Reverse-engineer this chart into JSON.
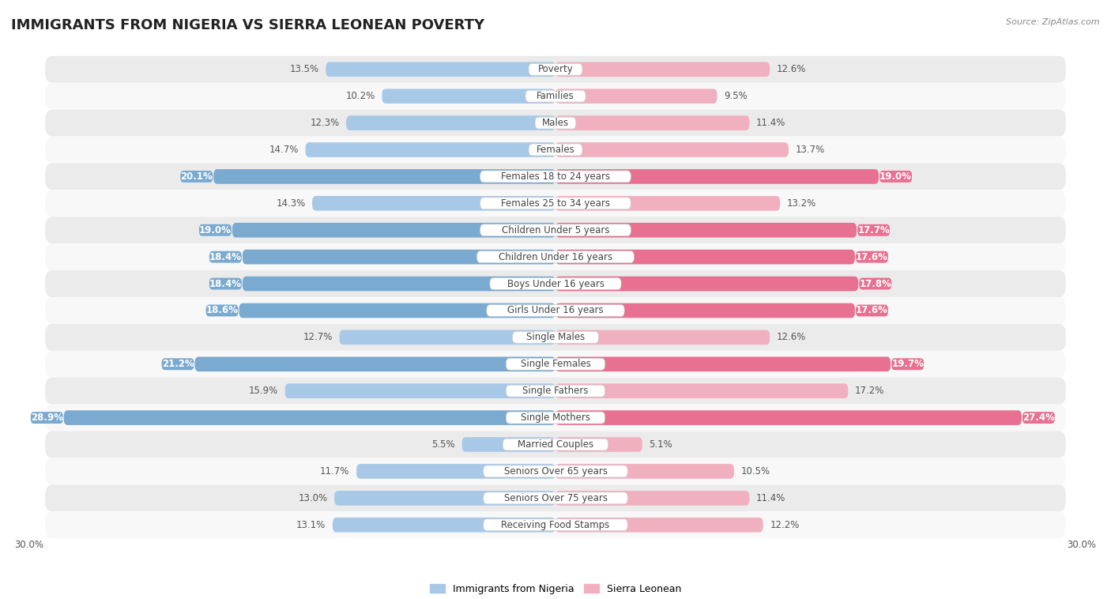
{
  "title": "IMMIGRANTS FROM NIGERIA VS SIERRA LEONEAN POVERTY",
  "source": "Source: ZipAtlas.com",
  "categories": [
    "Poverty",
    "Families",
    "Males",
    "Females",
    "Females 18 to 24 years",
    "Females 25 to 34 years",
    "Children Under 5 years",
    "Children Under 16 years",
    "Boys Under 16 years",
    "Girls Under 16 years",
    "Single Males",
    "Single Females",
    "Single Fathers",
    "Single Mothers",
    "Married Couples",
    "Seniors Over 65 years",
    "Seniors Over 75 years",
    "Receiving Food Stamps"
  ],
  "nigeria_values": [
    13.5,
    10.2,
    12.3,
    14.7,
    20.1,
    14.3,
    19.0,
    18.4,
    18.4,
    18.6,
    12.7,
    21.2,
    15.9,
    28.9,
    5.5,
    11.7,
    13.0,
    13.1
  ],
  "sierra_leone_values": [
    12.6,
    9.5,
    11.4,
    13.7,
    19.0,
    13.2,
    17.7,
    17.6,
    17.8,
    17.6,
    12.6,
    19.7,
    17.2,
    27.4,
    5.1,
    10.5,
    11.4,
    12.2
  ],
  "nigeria_color_normal": "#a8c8e8",
  "nigeria_color_highlight": "#7aaad0",
  "sierra_leone_color_normal": "#f0b0c0",
  "sierra_leone_color_highlight": "#e87090",
  "highlight_indices": [
    4,
    6,
    7,
    8,
    9,
    11,
    13
  ],
  "nigeria_label": "Immigrants from Nigeria",
  "sierra_leone_label": "Sierra Leonean",
  "x_max": 30.0,
  "bg_color_row": "#ebebeb",
  "bg_color_alt": "#f8f8f8",
  "title_fontsize": 13,
  "cat_fontsize": 8.5,
  "val_fontsize": 8.5,
  "legend_fontsize": 9
}
